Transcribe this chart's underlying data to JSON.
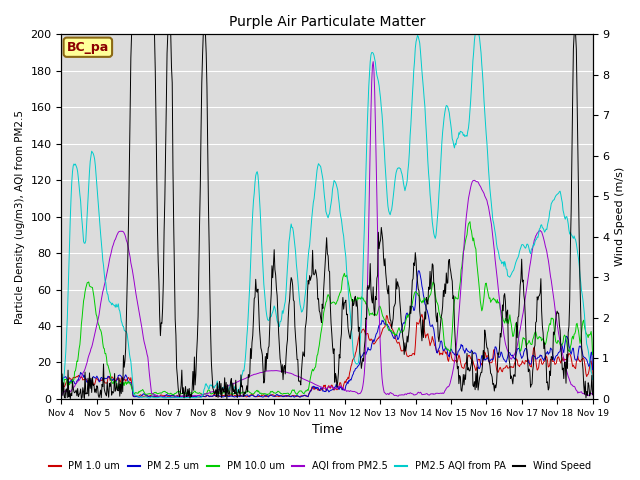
{
  "title": "Purple Air Particulate Matter",
  "xlabel": "Time",
  "ylabel_left": "Particle Density (ug/m3), AQI from PM2.5",
  "ylabel_right": "Wind Speed (m/s)",
  "annotation": "BC_pa",
  "x_tick_labels": [
    "Nov 4",
    "Nov 5",
    "Nov 6",
    "Nov 7",
    "Nov 8",
    "Nov 9",
    "Nov 10",
    "Nov 11",
    "Nov 12",
    "Nov 13",
    "Nov 14",
    "Nov 15",
    "Nov 16",
    "Nov 17",
    "Nov 18",
    "Nov 19"
  ],
  "ylim_left": [
    0,
    200
  ],
  "ylim_right": [
    0.0,
    9.0
  ],
  "colors": {
    "pm1": "#cc0000",
    "pm25": "#0000cc",
    "pm10": "#00cc00",
    "aqi_pm25": "#9900cc",
    "pm25_aqi_pa": "#00cccc",
    "wind": "#000000"
  },
  "legend_labels": [
    "PM 1.0 um",
    "PM 2.5 um",
    "PM 10.0 um",
    "AQI from PM2.5",
    "PM2.5 AQI from PA",
    "Wind Speed"
  ],
  "background_color": "#dcdcdc",
  "n_points": 720
}
